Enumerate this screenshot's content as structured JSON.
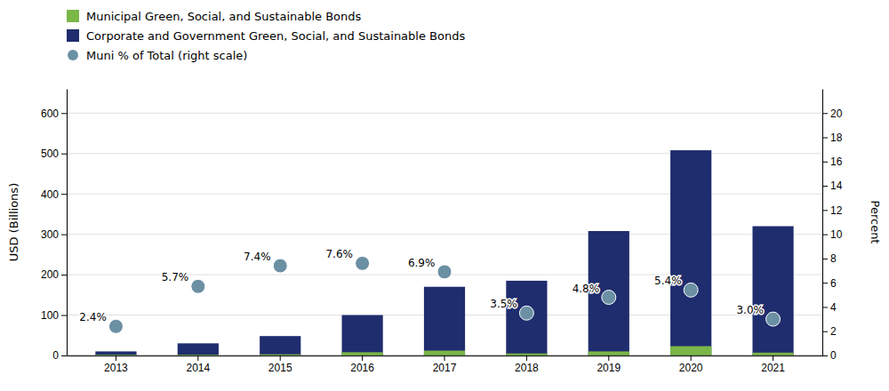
{
  "chart_data": {
    "type": "bar",
    "categories": [
      "2013",
      "2014",
      "2015",
      "2016",
      "2017",
      "2018",
      "2019",
      "2020",
      "2021"
    ],
    "series": [
      {
        "name": "Municipal Green, Social, and Sustainable Bonds",
        "type": "bar",
        "color": "#7ab648",
        "values": [
          2,
          2,
          3,
          8,
          12,
          5,
          10,
          23,
          7
        ]
      },
      {
        "name": "Corporate and Government Green, Social, and Sustainable Bonds",
        "type": "bar",
        "color": "#1f2d6e",
        "values": [
          10,
          30,
          48,
          100,
          170,
          185,
          308,
          508,
          320
        ]
      },
      {
        "name": "Muni % of Total (right scale)",
        "type": "scatter",
        "axis": "y2",
        "color": "#6b8fa3",
        "marker": "circle",
        "data_labels": true,
        "values": [
          2.4,
          5.7,
          7.4,
          7.6,
          6.9,
          3.5,
          4.8,
          5.4,
          3.0
        ],
        "value_labels": [
          "2.4%",
          "5.7%",
          "7.4%",
          "7.6%",
          "6.9%",
          "3.5%",
          "4.8%",
          "5.4%",
          "3.0%"
        ]
      }
    ],
    "ylabel": "USD (Billions)",
    "y2label": "Percent",
    "ylim": [
      0,
      660
    ],
    "yticks": [
      0,
      100,
      200,
      300,
      400,
      500,
      600
    ],
    "y2lim": [
      0,
      22
    ],
    "y2ticks": [
      0,
      2,
      4,
      6,
      8,
      10,
      12,
      14,
      16,
      18,
      20
    ],
    "grid": true,
    "legend": "top-left"
  }
}
